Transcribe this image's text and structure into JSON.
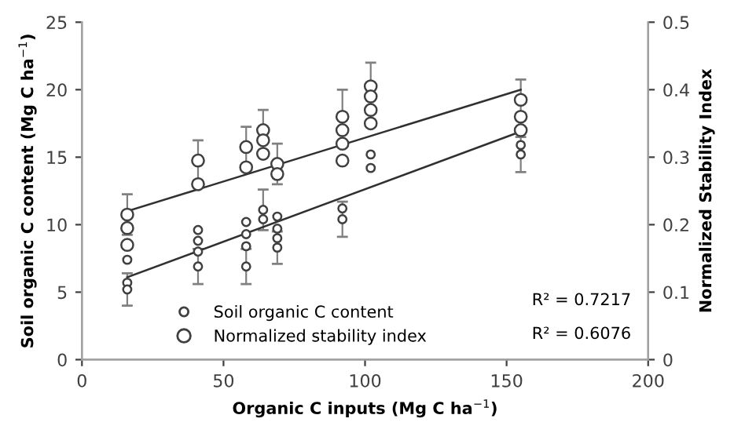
{
  "chart_data": {
    "type": "scatter",
    "xlabel": "Organic C inputs (Mg C ha$^{−1}$)",
    "ylabel": "Soil organic C content (Mg C ha$^{−1}$)",
    "y2label": "Normalized Stability Index",
    "xlim": [
      0,
      200
    ],
    "xticks": [
      0,
      50,
      100,
      150,
      200
    ],
    "ylim": [
      0,
      25
    ],
    "yticks": [
      0,
      5,
      10,
      15,
      20,
      25
    ],
    "y2lim": [
      0,
      0.5
    ],
    "y2ticks": [
      0,
      0.1,
      0.2,
      0.3,
      0.4,
      0.5
    ],
    "grid": false,
    "legend": "bottom",
    "marker": "circle",
    "series": [
      {
        "name": "Soil organic C content",
        "color": "#404040",
        "x": [
          16,
          16,
          16,
          41,
          41,
          41,
          41,
          58,
          58,
          58,
          58,
          64,
          64,
          69,
          69,
          69,
          69,
          92,
          92,
          102,
          102,
          155,
          155
        ],
        "values": [
          7.4,
          5.7,
          5.2,
          9.6,
          8.8,
          8.0,
          6.9,
          10.2,
          9.3,
          8.4,
          6.9,
          11.1,
          10.4,
          10.6,
          9.7,
          9.0,
          8.3,
          11.2,
          10.4,
          15.2,
          14.2,
          15.9,
          15.2
        ],
        "errors": [
          null,
          null,
          1.2,
          null,
          null,
          null,
          1.3,
          null,
          null,
          null,
          1.3,
          1.5,
          null,
          null,
          null,
          null,
          1.2,
          null,
          1.3,
          null,
          null,
          null,
          1.3
        ]
      },
      {
        "name": "Normalized stability index",
        "axis": "y2",
        "color": "#404040",
        "x": [
          16,
          16,
          16,
          41,
          41,
          58,
          58,
          64,
          64,
          64,
          69,
          69,
          92,
          92,
          92,
          92,
          102,
          102,
          102,
          102,
          155,
          155,
          155
        ],
        "values": [
          0.215,
          0.195,
          0.17,
          0.295,
          0.26,
          0.315,
          0.285,
          0.34,
          0.325,
          0.305,
          0.29,
          0.275,
          0.36,
          0.34,
          0.32,
          0.295,
          0.405,
          0.39,
          0.37,
          0.35,
          0.385,
          0.36,
          0.34
        ],
        "errors": [
          0.03,
          null,
          null,
          0.03,
          null,
          0.03,
          null,
          0.03,
          null,
          null,
          0.03,
          null,
          0.04,
          null,
          null,
          null,
          0.035,
          null,
          null,
          null,
          0.03,
          null,
          null
        ]
      },
      {
        "type": "line",
        "marker": "none",
        "color": "#303030",
        "x": [
          16,
          155
        ],
        "values": [
          6.1,
          16.9
        ]
      },
      {
        "type": "line",
        "marker": "none",
        "axis": "y2",
        "color": "#303030",
        "x": [
          16,
          155
        ],
        "values": [
          0.22,
          0.4
        ]
      }
    ],
    "annotations": [
      "R² = 0.7217",
      "R² = 0.6076"
    ]
  }
}
